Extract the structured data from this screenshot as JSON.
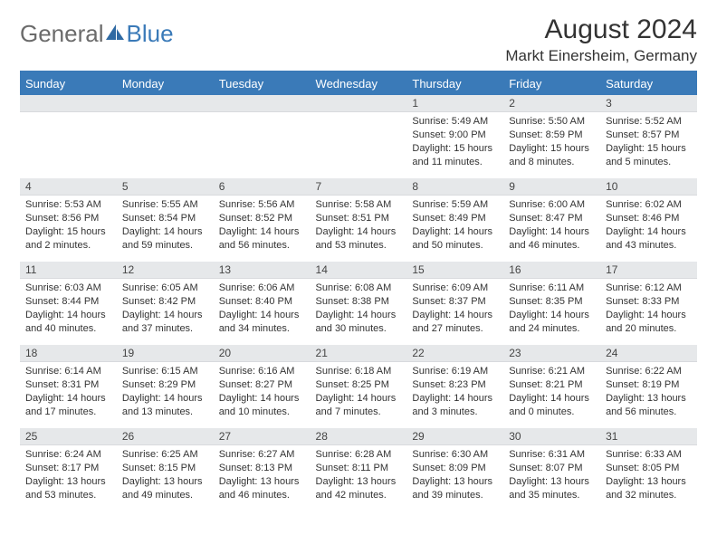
{
  "logo": {
    "part1": "General",
    "part2": "Blue"
  },
  "title": "August 2024",
  "location": "Markt Einersheim, Germany",
  "colors": {
    "header_bg": "#3a7ab8",
    "header_fg": "#ffffff",
    "band_bg": "#e6e8ea",
    "text": "#333333",
    "logo_gray": "#6b6b6b",
    "logo_blue": "#3a7ab8"
  },
  "typography": {
    "title_fontsize": 30,
    "location_fontsize": 17,
    "dayhead_fontsize": 13,
    "body_fontsize": 11
  },
  "day_headers": [
    "Sunday",
    "Monday",
    "Tuesday",
    "Wednesday",
    "Thursday",
    "Friday",
    "Saturday"
  ],
  "weeks": [
    [
      null,
      null,
      null,
      null,
      {
        "n": "1",
        "sr": "Sunrise: 5:49 AM",
        "ss": "Sunset: 9:00 PM",
        "dl": "Daylight: 15 hours and 11 minutes."
      },
      {
        "n": "2",
        "sr": "Sunrise: 5:50 AM",
        "ss": "Sunset: 8:59 PM",
        "dl": "Daylight: 15 hours and 8 minutes."
      },
      {
        "n": "3",
        "sr": "Sunrise: 5:52 AM",
        "ss": "Sunset: 8:57 PM",
        "dl": "Daylight: 15 hours and 5 minutes."
      }
    ],
    [
      {
        "n": "4",
        "sr": "Sunrise: 5:53 AM",
        "ss": "Sunset: 8:56 PM",
        "dl": "Daylight: 15 hours and 2 minutes."
      },
      {
        "n": "5",
        "sr": "Sunrise: 5:55 AM",
        "ss": "Sunset: 8:54 PM",
        "dl": "Daylight: 14 hours and 59 minutes."
      },
      {
        "n": "6",
        "sr": "Sunrise: 5:56 AM",
        "ss": "Sunset: 8:52 PM",
        "dl": "Daylight: 14 hours and 56 minutes."
      },
      {
        "n": "7",
        "sr": "Sunrise: 5:58 AM",
        "ss": "Sunset: 8:51 PM",
        "dl": "Daylight: 14 hours and 53 minutes."
      },
      {
        "n": "8",
        "sr": "Sunrise: 5:59 AM",
        "ss": "Sunset: 8:49 PM",
        "dl": "Daylight: 14 hours and 50 minutes."
      },
      {
        "n": "9",
        "sr": "Sunrise: 6:00 AM",
        "ss": "Sunset: 8:47 PM",
        "dl": "Daylight: 14 hours and 46 minutes."
      },
      {
        "n": "10",
        "sr": "Sunrise: 6:02 AM",
        "ss": "Sunset: 8:46 PM",
        "dl": "Daylight: 14 hours and 43 minutes."
      }
    ],
    [
      {
        "n": "11",
        "sr": "Sunrise: 6:03 AM",
        "ss": "Sunset: 8:44 PM",
        "dl": "Daylight: 14 hours and 40 minutes."
      },
      {
        "n": "12",
        "sr": "Sunrise: 6:05 AM",
        "ss": "Sunset: 8:42 PM",
        "dl": "Daylight: 14 hours and 37 minutes."
      },
      {
        "n": "13",
        "sr": "Sunrise: 6:06 AM",
        "ss": "Sunset: 8:40 PM",
        "dl": "Daylight: 14 hours and 34 minutes."
      },
      {
        "n": "14",
        "sr": "Sunrise: 6:08 AM",
        "ss": "Sunset: 8:38 PM",
        "dl": "Daylight: 14 hours and 30 minutes."
      },
      {
        "n": "15",
        "sr": "Sunrise: 6:09 AM",
        "ss": "Sunset: 8:37 PM",
        "dl": "Daylight: 14 hours and 27 minutes."
      },
      {
        "n": "16",
        "sr": "Sunrise: 6:11 AM",
        "ss": "Sunset: 8:35 PM",
        "dl": "Daylight: 14 hours and 24 minutes."
      },
      {
        "n": "17",
        "sr": "Sunrise: 6:12 AM",
        "ss": "Sunset: 8:33 PM",
        "dl": "Daylight: 14 hours and 20 minutes."
      }
    ],
    [
      {
        "n": "18",
        "sr": "Sunrise: 6:14 AM",
        "ss": "Sunset: 8:31 PM",
        "dl": "Daylight: 14 hours and 17 minutes."
      },
      {
        "n": "19",
        "sr": "Sunrise: 6:15 AM",
        "ss": "Sunset: 8:29 PM",
        "dl": "Daylight: 14 hours and 13 minutes."
      },
      {
        "n": "20",
        "sr": "Sunrise: 6:16 AM",
        "ss": "Sunset: 8:27 PM",
        "dl": "Daylight: 14 hours and 10 minutes."
      },
      {
        "n": "21",
        "sr": "Sunrise: 6:18 AM",
        "ss": "Sunset: 8:25 PM",
        "dl": "Daylight: 14 hours and 7 minutes."
      },
      {
        "n": "22",
        "sr": "Sunrise: 6:19 AM",
        "ss": "Sunset: 8:23 PM",
        "dl": "Daylight: 14 hours and 3 minutes."
      },
      {
        "n": "23",
        "sr": "Sunrise: 6:21 AM",
        "ss": "Sunset: 8:21 PM",
        "dl": "Daylight: 14 hours and 0 minutes."
      },
      {
        "n": "24",
        "sr": "Sunrise: 6:22 AM",
        "ss": "Sunset: 8:19 PM",
        "dl": "Daylight: 13 hours and 56 minutes."
      }
    ],
    [
      {
        "n": "25",
        "sr": "Sunrise: 6:24 AM",
        "ss": "Sunset: 8:17 PM",
        "dl": "Daylight: 13 hours and 53 minutes."
      },
      {
        "n": "26",
        "sr": "Sunrise: 6:25 AM",
        "ss": "Sunset: 8:15 PM",
        "dl": "Daylight: 13 hours and 49 minutes."
      },
      {
        "n": "27",
        "sr": "Sunrise: 6:27 AM",
        "ss": "Sunset: 8:13 PM",
        "dl": "Daylight: 13 hours and 46 minutes."
      },
      {
        "n": "28",
        "sr": "Sunrise: 6:28 AM",
        "ss": "Sunset: 8:11 PM",
        "dl": "Daylight: 13 hours and 42 minutes."
      },
      {
        "n": "29",
        "sr": "Sunrise: 6:30 AM",
        "ss": "Sunset: 8:09 PM",
        "dl": "Daylight: 13 hours and 39 minutes."
      },
      {
        "n": "30",
        "sr": "Sunrise: 6:31 AM",
        "ss": "Sunset: 8:07 PM",
        "dl": "Daylight: 13 hours and 35 minutes."
      },
      {
        "n": "31",
        "sr": "Sunrise: 6:33 AM",
        "ss": "Sunset: 8:05 PM",
        "dl": "Daylight: 13 hours and 32 minutes."
      }
    ]
  ]
}
